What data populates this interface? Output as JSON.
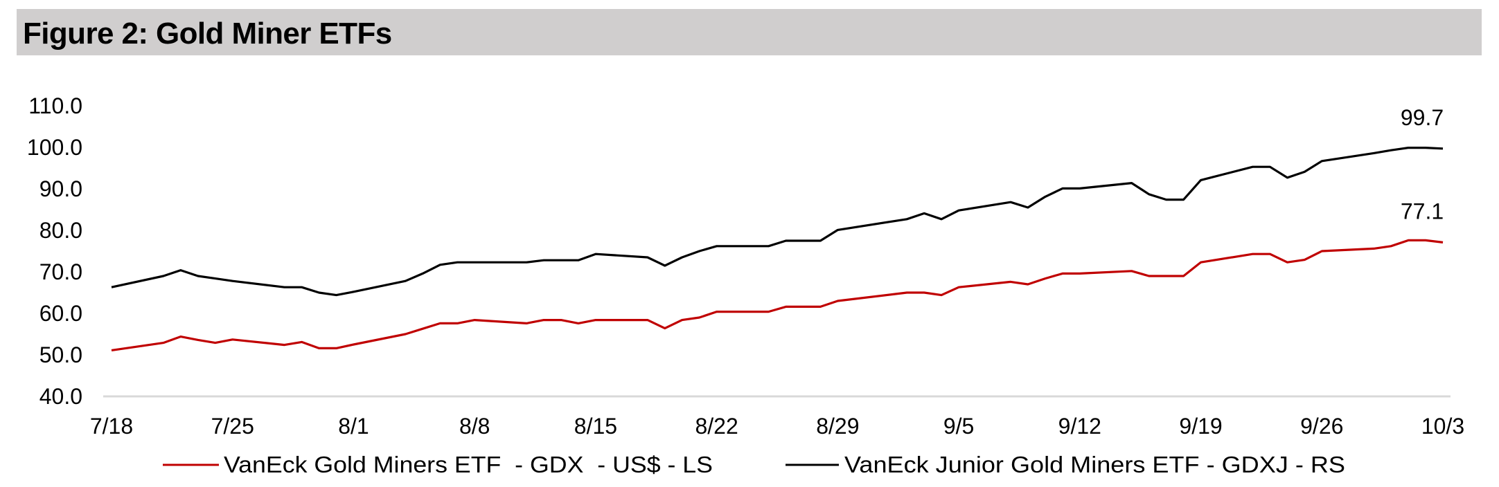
{
  "chart_data": {
    "type": "line",
    "title": "Figure 2: Gold Miner ETFs",
    "xlabel": "",
    "ylabel": "",
    "ylim": [
      40,
      110
    ],
    "yticks": [
      "40.0",
      "50.0",
      "60.0",
      "70.0",
      "80.0",
      "90.0",
      "100.0",
      "110.0"
    ],
    "xticks": [
      "7/18",
      "7/25",
      "8/1",
      "8/8",
      "8/15",
      "8/22",
      "8/29",
      "9/5",
      "9/12",
      "9/19",
      "9/26",
      "10/3"
    ],
    "grid": false,
    "legend_position": "bottom",
    "x": [
      "7/18",
      "7/21",
      "7/22",
      "7/23",
      "7/24",
      "7/25",
      "7/28",
      "7/29",
      "7/30",
      "7/31",
      "8/1",
      "8/4",
      "8/5",
      "8/6",
      "8/7",
      "8/8",
      "8/11",
      "8/12",
      "8/13",
      "8/14",
      "8/15",
      "8/18",
      "8/19",
      "8/20",
      "8/21",
      "8/22",
      "8/25",
      "8/26",
      "8/27",
      "8/28",
      "8/29",
      "9/2",
      "9/3",
      "9/4",
      "9/5",
      "9/8",
      "9/9",
      "9/10",
      "9/11",
      "9/12",
      "9/15",
      "9/16",
      "9/17",
      "9/18",
      "9/19",
      "9/22",
      "9/23",
      "9/24",
      "9/25",
      "9/26",
      "9/29",
      "9/30",
      "10/1",
      "10/2",
      "10/3"
    ],
    "series": [
      {
        "name": "VanEck Gold Miners ETF  - GDX  - US$ - LS",
        "color": "#c00000",
        "values": [
          51.1,
          52.9,
          54.4,
          53.6,
          52.9,
          53.7,
          52.4,
          53.1,
          51.6,
          51.6,
          52.5,
          55.0,
          56.3,
          57.6,
          57.6,
          58.4,
          57.6,
          58.4,
          58.4,
          57.6,
          58.4,
          58.4,
          56.4,
          58.4,
          59.0,
          60.4,
          60.4,
          61.6,
          61.6,
          61.6,
          63.0,
          65.0,
          65.0,
          64.4,
          66.3,
          67.6,
          67.0,
          68.4,
          69.6,
          69.6,
          70.2,
          69.0,
          69.0,
          69.0,
          72.3,
          74.3,
          74.3,
          72.3,
          72.9,
          75.0,
          75.6,
          76.2,
          77.6,
          77.6,
          77.1
        ],
        "end_label": "77.1"
      },
      {
        "name": "VanEck Junior Gold Miners ETF - GDXJ - RS",
        "color": "#000000",
        "values": [
          66.3,
          69.0,
          70.4,
          69.0,
          68.4,
          67.8,
          66.3,
          66.3,
          65.0,
          64.4,
          65.2,
          67.8,
          69.6,
          71.7,
          72.3,
          72.3,
          72.3,
          72.8,
          72.8,
          72.8,
          74.3,
          73.5,
          71.5,
          73.5,
          75.0,
          76.2,
          76.2,
          77.5,
          77.5,
          77.5,
          80.1,
          82.7,
          84.1,
          82.7,
          84.8,
          86.8,
          85.5,
          88.1,
          90.1,
          90.1,
          91.4,
          88.7,
          87.4,
          87.4,
          92.1,
          95.3,
          95.3,
          92.7,
          94.1,
          96.7,
          98.6,
          99.3,
          99.9,
          99.9,
          99.7
        ],
        "end_label": "99.7"
      }
    ]
  }
}
